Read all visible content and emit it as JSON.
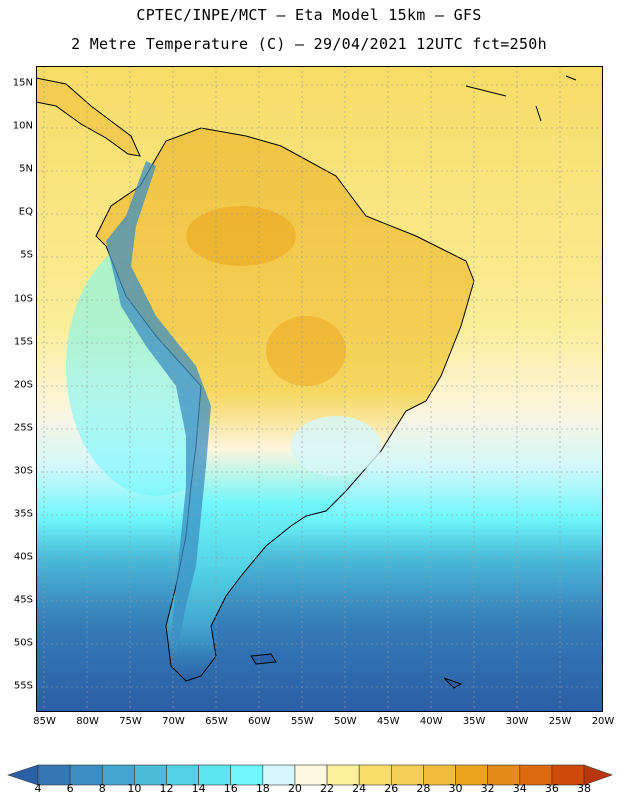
{
  "header": {
    "line1": "CPTEC/INPE/MCT –  Eta Model 15km – GFS",
    "line2": "2 Metre Temperature (C) – 29/04/2021 12UTC fct=250h"
  },
  "map": {
    "lat_labels": [
      "15N",
      "10N",
      "5N",
      "EQ",
      "5S",
      "10S",
      "15S",
      "20S",
      "25S",
      "30S",
      "35S",
      "40S",
      "45S",
      "50S",
      "55S"
    ],
    "lat_values": [
      15,
      10,
      5,
      0,
      -5,
      -10,
      -15,
      -20,
      -25,
      -30,
      -35,
      -40,
      -45,
      -50,
      -55
    ],
    "lon_labels": [
      "85W",
      "80W",
      "75W",
      "70W",
      "65W",
      "60W",
      "55W",
      "50W",
      "45W",
      "40W",
      "35W",
      "30W",
      "25W",
      "20W"
    ],
    "lon_values": [
      -85,
      -80,
      -75,
      -70,
      -65,
      -60,
      -55,
      -50,
      -45,
      -40,
      -35,
      -30,
      -25,
      -20
    ],
    "extent": {
      "lon_min": -86,
      "lon_max": -20,
      "lat_min": -58,
      "lat_max": 17
    }
  },
  "colorbar": {
    "ticks": [
      "4",
      "6",
      "8",
      "10",
      "12",
      "14",
      "16",
      "18",
      "20",
      "22",
      "24",
      "26",
      "28",
      "30",
      "32",
      "34",
      "36",
      "38"
    ],
    "colors": [
      "#2b5fa6",
      "#3377b5",
      "#3c8ec2",
      "#43a6cf",
      "#4bbcd9",
      "#52d1e4",
      "#5ce6ef",
      "#6ff7fb",
      "#d4f7fb",
      "#fdf8e2",
      "#fbf19b",
      "#f8df69",
      "#f4cf55",
      "#f1bd3d",
      "#eba41c",
      "#e58a1b",
      "#dc6a10",
      "#cf4a08",
      "#b9360a"
    ]
  }
}
